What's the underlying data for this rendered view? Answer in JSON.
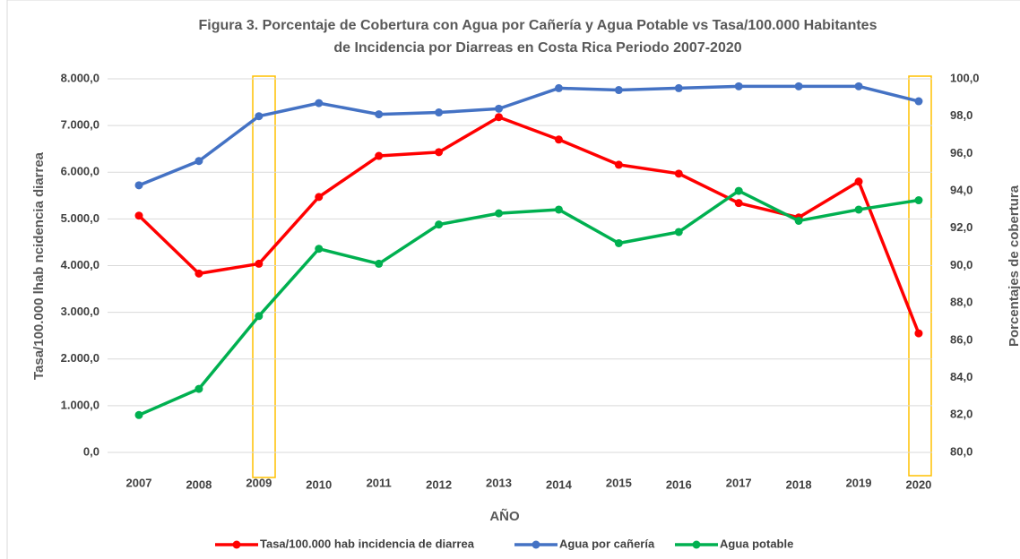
{
  "chart_data": {
    "type": "line",
    "title": [
      "Figura 3. Porcentaje de Cobertura con Agua por Cañería y Agua Potable vs Tasa/100.000 Habitantes",
      "de Incidencia por Diarreas en Costa Rica Periodo  2007-2020"
    ],
    "xlabel": "AÑO",
    "ylabel": "Tasa/100.000 lhab ncidencia diarrea",
    "y2label": "Porcentajes de cobertura",
    "categories": [
      "2007",
      "2008",
      "2009",
      "2010",
      "2011",
      "2012",
      "2013",
      "2014",
      "2015",
      "2016",
      "2017",
      "2018",
      "2019",
      "2020"
    ],
    "ylim": [
      0,
      8000
    ],
    "yticks": [
      {
        "value": 0,
        "label": "0,0"
      },
      {
        "value": 1000,
        "label": "1.000,0"
      },
      {
        "value": 2000,
        "label": "2.000,0"
      },
      {
        "value": 3000,
        "label": "3.000,0"
      },
      {
        "value": 4000,
        "label": "4.000,0"
      },
      {
        "value": 5000,
        "label": "5.000,0"
      },
      {
        "value": 6000,
        "label": "6.000,0"
      },
      {
        "value": 7000,
        "label": "7.000,0"
      },
      {
        "value": 8000,
        "label": "8.000,0"
      }
    ],
    "y2lim": [
      80,
      100
    ],
    "y2ticks": [
      {
        "value": 80,
        "label": "80,0"
      },
      {
        "value": 82,
        "label": "82,0"
      },
      {
        "value": 84,
        "label": "84,0"
      },
      {
        "value": 86,
        "label": "86,0"
      },
      {
        "value": 88,
        "label": "88,0"
      },
      {
        "value": 90,
        "label": "90,0"
      },
      {
        "value": 92,
        "label": "92,0"
      },
      {
        "value": 94,
        "label": "94,0"
      },
      {
        "value": 96,
        "label": "96,0"
      },
      {
        "value": 98,
        "label": "98,0"
      },
      {
        "value": 100,
        "label": "100,0"
      }
    ],
    "grid": true,
    "legend": "bottom",
    "series": [
      {
        "name": "Tasa/100.000 hab incidencia de diarrea",
        "color": "#ff0000",
        "values": [
          5070,
          3830,
          4040,
          5470,
          6350,
          6430,
          7180,
          6700,
          6160,
          5970,
          5340,
          5030,
          5800,
          2550
        ]
      },
      {
        "name": "Agua por cañería",
        "color": "#4472c4",
        "axis": "y2",
        "values": [
          94.3,
          95.6,
          98.0,
          98.7,
          98.1,
          98.2,
          98.4,
          99.5,
          99.4,
          99.5,
          99.6,
          99.6,
          99.6,
          98.8
        ]
      },
      {
        "name": "Agua potable",
        "color": "#00b050",
        "axis": "y2",
        "values": [
          82.0,
          83.4,
          87.3,
          90.9,
          90.1,
          92.2,
          92.8,
          93.0,
          91.2,
          91.8,
          94.0,
          92.4,
          93.0,
          93.5
        ]
      }
    ]
  }
}
